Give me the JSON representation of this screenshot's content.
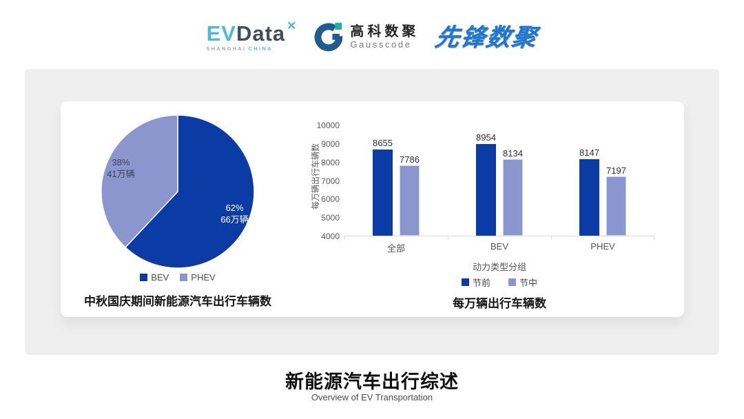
{
  "header": {
    "evdata_logo": {
      "ev": "EV",
      "data": "Data",
      "spark": "✕",
      "sub_shanghai": "SHANGHAI",
      "sub_china": "CHINA"
    },
    "gausscode_logo": {
      "name_cn": "高科数聚",
      "name_en": "Gausscode"
    },
    "pioneer_logo": {
      "text": "先锋数聚"
    }
  },
  "chart_data": [
    {
      "type": "pie",
      "title": "中秋国庆期间新能源汽车出行车辆数",
      "unit": "万辆",
      "slices": [
        {
          "label": "BEV",
          "percent": 62,
          "value": 66,
          "percent_text": "62%",
          "value_text": "66万辆",
          "color": "#0b3ca5",
          "label_color": "#ffffff"
        },
        {
          "label": "PHEV",
          "percent": 38,
          "value": 41,
          "percent_text": "38%",
          "value_text": "41万辆",
          "color": "#8b95ce",
          "label_color": "#3f4257"
        }
      ],
      "legend_position": "bottom"
    },
    {
      "type": "bar",
      "title": "每万辆出行车辆数",
      "categories": [
        "全部",
        "BEV",
        "PHEV"
      ],
      "series": [
        {
          "name": "节前",
          "color": "#0b3ca5",
          "values": [
            8655,
            8954,
            8147
          ]
        },
        {
          "name": "节中",
          "color": "#8b95ce",
          "values": [
            7786,
            8134,
            7197
          ]
        }
      ],
      "xlabel": "动力类型分组",
      "ylabel": "每万辆出行车辆数",
      "ylim": [
        4000,
        10000
      ],
      "y_ticks": [
        10000,
        9000,
        8000,
        7000,
        6000,
        5000,
        4000
      ],
      "grid": false,
      "legend_position": "bottom"
    }
  ],
  "footer": {
    "title": "新能源汽车出行综述",
    "subtitle": "Overview of EV Transportation"
  },
  "colors": {
    "primary_dark": "#0b3ca5",
    "primary_light": "#8b95ce",
    "panel_bg": "#efefef",
    "axis_gray": "#595959",
    "accent_cyan": "#4cb9da",
    "logo_navy": "#3d4e61",
    "gauss_blue": "#1d5b90",
    "gauss_teal": "#17b3a3",
    "pioneer_blue": "#2575cc"
  }
}
